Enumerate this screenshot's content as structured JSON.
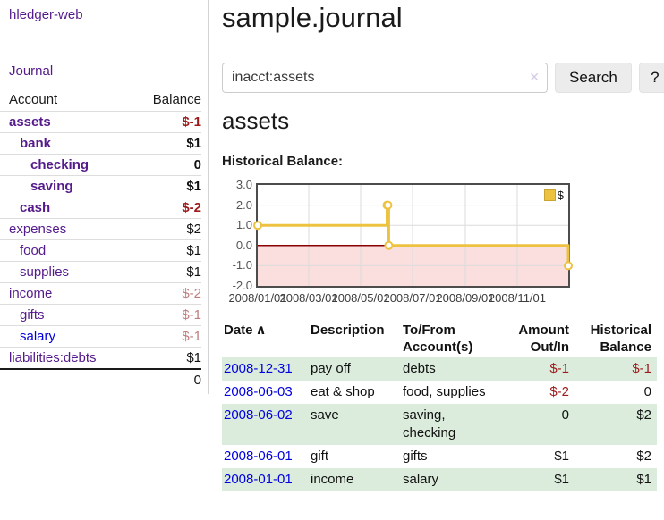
{
  "app": {
    "brand": "hledger-web",
    "nav_journal": "Journal"
  },
  "colors": {
    "purple_link": "#551a8b",
    "blue_link": "#0000e0",
    "neg_strong": "#9c1a1a",
    "neg_muted": "#bd7d7d",
    "row_green": "#dbecdc",
    "chart_line": "#edc240"
  },
  "sidebar": {
    "accounts_header": {
      "account": "Account",
      "balance": "Balance"
    },
    "accounts": [
      {
        "name": "assets",
        "balance": "$-1",
        "depth": 1,
        "bold": true,
        "neg": "strong"
      },
      {
        "name": "bank",
        "balance": "$1",
        "depth": 2,
        "bold": true,
        "neg": "none"
      },
      {
        "name": "checking",
        "balance": "0",
        "depth": 3,
        "bold": true,
        "neg": "none"
      },
      {
        "name": "saving",
        "balance": "$1",
        "depth": 3,
        "bold": true,
        "neg": "none"
      },
      {
        "name": "cash",
        "balance": "$-2",
        "depth": 2,
        "bold": true,
        "neg": "strong"
      },
      {
        "name": "expenses",
        "balance": "$2",
        "depth": 1,
        "bold": false,
        "neg": "none"
      },
      {
        "name": "food",
        "balance": "$1",
        "depth": 2,
        "bold": false,
        "neg": "none"
      },
      {
        "name": "supplies",
        "balance": "$1",
        "depth": 2,
        "bold": false,
        "neg": "none"
      },
      {
        "name": "income",
        "balance": "$-2",
        "depth": 1,
        "bold": false,
        "neg": "muted"
      },
      {
        "name": "gifts",
        "balance": "$-1",
        "depth": 2,
        "bold": false,
        "neg": "muted"
      },
      {
        "name": "salary",
        "balance": "$-1",
        "depth": 2,
        "bold": false,
        "neg": "muted",
        "color": "blue"
      },
      {
        "name": "liabilities:debts",
        "balance": "$1",
        "depth": 1,
        "bold": false,
        "neg": "none"
      }
    ],
    "total": "0"
  },
  "header": {
    "title": "sample.journal"
  },
  "search": {
    "value": "inacct:assets",
    "clear_icon": "✕",
    "search_label": "Search",
    "help_label": "?"
  },
  "account_page": {
    "heading": "assets",
    "chart_label": "Historical Balance:"
  },
  "chart_data": {
    "type": "line",
    "style": "step",
    "title": "Historical Balance",
    "legend": "$",
    "legend_position": "top-right",
    "grid": true,
    "ylim": [
      -2,
      3
    ],
    "yticks": [
      3,
      2,
      1,
      0,
      -1,
      -2
    ],
    "x_domain_days": 365,
    "xticks": [
      {
        "label": "2008/01/01",
        "day": 0
      },
      {
        "label": "2008/03/01",
        "day": 60
      },
      {
        "label": "2008/05/01",
        "day": 121
      },
      {
        "label": "2008/07/01",
        "day": 182
      },
      {
        "label": "2008/09/01",
        "day": 244
      },
      {
        "label": "2008/11/01",
        "day": 305
      }
    ],
    "series": [
      {
        "name": "$",
        "color": "#edc240",
        "points": [
          {
            "date": "2008-01-01",
            "day": 0,
            "y": 1
          },
          {
            "date": "2008-06-01",
            "day": 152,
            "y": 2
          },
          {
            "date": "2008-06-02",
            "day": 153,
            "y": 2
          },
          {
            "date": "2008-06-03",
            "day": 154,
            "y": 0
          },
          {
            "date": "2008-12-31",
            "day": 365,
            "y": -1
          }
        ]
      }
    ],
    "negative_region_color": "#fbdede",
    "zero_line_color": "#8b0000"
  },
  "register": {
    "columns": [
      "Date",
      "Description",
      "To/From Account(s)",
      "Amount Out/In",
      "Historical Balance"
    ],
    "sort_icon": "∧",
    "rows": [
      {
        "date": "2008-12-31",
        "description": "pay off",
        "accounts": "debts",
        "amount": "$-1",
        "amount_negative": true,
        "balance": "$-1",
        "balance_negative": true
      },
      {
        "date": "2008-06-03",
        "description": "eat & shop",
        "accounts": "food, supplies",
        "amount": "$-2",
        "amount_negative": true,
        "balance": "0",
        "balance_negative": false
      },
      {
        "date": "2008-06-02",
        "description": "save",
        "accounts": "saving, checking",
        "amount": "0",
        "amount_negative": false,
        "balance": "$2",
        "balance_negative": false
      },
      {
        "date": "2008-06-01",
        "description": "gift",
        "accounts": "gifts",
        "amount": "$1",
        "amount_negative": false,
        "balance": "$2",
        "balance_negative": false
      },
      {
        "date": "2008-01-01",
        "description": "income",
        "accounts": "salary",
        "amount": "$1",
        "amount_negative": false,
        "balance": "$1",
        "balance_negative": false
      }
    ]
  }
}
